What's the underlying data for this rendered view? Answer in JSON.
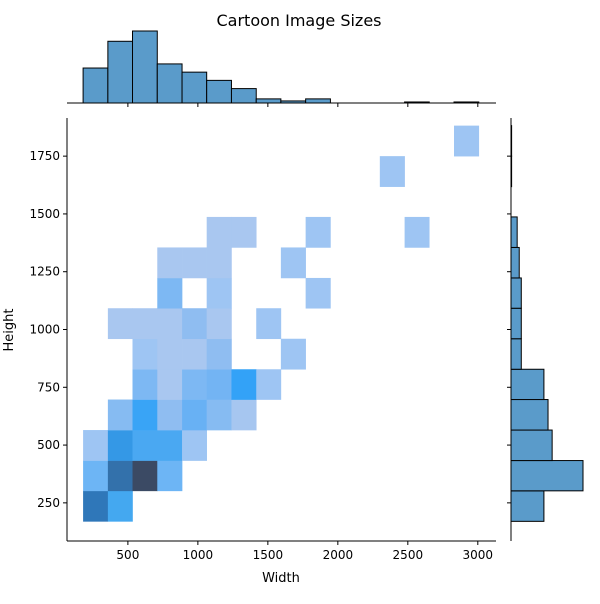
{
  "chart_data": {
    "type": "heatmap",
    "title": "Cartoon Image Sizes",
    "xlabel": "Width",
    "ylabel": "Height",
    "xlim": [
      65,
      3130
    ],
    "ylim": [
      85,
      1915
    ],
    "x_ticks": [
      500,
      1000,
      1500,
      2000,
      2500,
      3000
    ],
    "y_ticks": [
      250,
      500,
      750,
      1000,
      1250,
      1500,
      1750
    ],
    "x_bin_edges": [
      180,
      357,
      533,
      710,
      887,
      1063,
      1240,
      1417,
      1593,
      1770,
      1947,
      2123,
      2300,
      2477,
      2653,
      2830,
      3007
    ],
    "y_bin_edges": [
      170,
      302,
      433,
      565,
      697,
      828,
      960,
      1092,
      1223,
      1355,
      1487,
      1618,
      1750,
      1882
    ],
    "cells": [
      {
        "x_bin": 0,
        "y_bin": 0,
        "color": "#2f77b9"
      },
      {
        "x_bin": 1,
        "y_bin": 0,
        "color": "#44a8f0"
      },
      {
        "x_bin": 0,
        "y_bin": 1,
        "color": "#6db5f5"
      },
      {
        "x_bin": 1,
        "y_bin": 1,
        "color": "#3371ab"
      },
      {
        "x_bin": 2,
        "y_bin": 1,
        "color": "#3b4a64"
      },
      {
        "x_bin": 3,
        "y_bin": 1,
        "color": "#6db5f5"
      },
      {
        "x_bin": 0,
        "y_bin": 2,
        "color": "#9ec5f3"
      },
      {
        "x_bin": 1,
        "y_bin": 2,
        "color": "#3498e6"
      },
      {
        "x_bin": 2,
        "y_bin": 2,
        "color": "#4aa8f2"
      },
      {
        "x_bin": 3,
        "y_bin": 2,
        "color": "#4aa8f2"
      },
      {
        "x_bin": 4,
        "y_bin": 2,
        "color": "#9ec5f3"
      },
      {
        "x_bin": 1,
        "y_bin": 3,
        "color": "#86bbf2"
      },
      {
        "x_bin": 2,
        "y_bin": 3,
        "color": "#39a4f6"
      },
      {
        "x_bin": 3,
        "y_bin": 3,
        "color": "#8fbdf1"
      },
      {
        "x_bin": 4,
        "y_bin": 3,
        "color": "#68b1f4"
      },
      {
        "x_bin": 5,
        "y_bin": 3,
        "color": "#86bbf2"
      },
      {
        "x_bin": 6,
        "y_bin": 3,
        "color": "#a6c6f0"
      },
      {
        "x_bin": 2,
        "y_bin": 4,
        "color": "#7db8f3"
      },
      {
        "x_bin": 3,
        "y_bin": 4,
        "color": "#a9c7f0"
      },
      {
        "x_bin": 4,
        "y_bin": 4,
        "color": "#7db8f3"
      },
      {
        "x_bin": 5,
        "y_bin": 4,
        "color": "#73b4f3"
      },
      {
        "x_bin": 6,
        "y_bin": 4,
        "color": "#33a2f7"
      },
      {
        "x_bin": 7,
        "y_bin": 4,
        "color": "#9ec5f3"
      },
      {
        "x_bin": 2,
        "y_bin": 5,
        "color": "#9ec5f3"
      },
      {
        "x_bin": 3,
        "y_bin": 5,
        "color": "#a9c7f0"
      },
      {
        "x_bin": 4,
        "y_bin": 5,
        "color": "#a9c7f0"
      },
      {
        "x_bin": 5,
        "y_bin": 5,
        "color": "#8fbdf1"
      },
      {
        "x_bin": 8,
        "y_bin": 5,
        "color": "#9ec5f3"
      },
      {
        "x_bin": 1,
        "y_bin": 6,
        "color": "#a9c7f0"
      },
      {
        "x_bin": 2,
        "y_bin": 6,
        "color": "#a9c7f0"
      },
      {
        "x_bin": 3,
        "y_bin": 6,
        "color": "#a9c7f0"
      },
      {
        "x_bin": 4,
        "y_bin": 6,
        "color": "#8fbdf1"
      },
      {
        "x_bin": 5,
        "y_bin": 6,
        "color": "#a9c7f0"
      },
      {
        "x_bin": 7,
        "y_bin": 6,
        "color": "#9ec5f3"
      },
      {
        "x_bin": 3,
        "y_bin": 7,
        "color": "#7db8f3"
      },
      {
        "x_bin": 5,
        "y_bin": 7,
        "color": "#9ec5f3"
      },
      {
        "x_bin": 9,
        "y_bin": 7,
        "color": "#9ec5f3"
      },
      {
        "x_bin": 3,
        "y_bin": 8,
        "color": "#a9c7f0"
      },
      {
        "x_bin": 4,
        "y_bin": 8,
        "color": "#a9c7f0"
      },
      {
        "x_bin": 5,
        "y_bin": 8,
        "color": "#a9c7f0"
      },
      {
        "x_bin": 8,
        "y_bin": 8,
        "color": "#9ec5f3"
      },
      {
        "x_bin": 5,
        "y_bin": 9,
        "color": "#a9c7f0"
      },
      {
        "x_bin": 6,
        "y_bin": 9,
        "color": "#a9c7f0"
      },
      {
        "x_bin": 9,
        "y_bin": 9,
        "color": "#9ec5f3"
      },
      {
        "x_bin": 13,
        "y_bin": 9,
        "color": "#9ec5f3"
      },
      {
        "x_bin": 12,
        "y_bin": 11,
        "color": "#9ec5f3"
      },
      {
        "x_bin": 15,
        "y_bin": 12,
        "color": "#9ec5f3"
      }
    ],
    "marginal_x": {
      "bin_edges": [
        180,
        357,
        533,
        710,
        887,
        1063,
        1240,
        1417,
        1593,
        1770,
        1947,
        2123,
        2300,
        2477,
        2653,
        2830,
        3007
      ],
      "counts": [
        17,
        30,
        35,
        19,
        15,
        11,
        7,
        2,
        1,
        2,
        0,
        0,
        0,
        0.5,
        0,
        0.5
      ]
    },
    "marginal_y": {
      "bin_edges": [
        170,
        302,
        433,
        565,
        697,
        828,
        960,
        1092,
        1223,
        1355,
        1487,
        1618,
        1750,
        1882
      ],
      "counts": [
        16,
        35,
        20,
        18,
        16,
        5,
        5,
        5,
        4,
        3,
        0,
        0.3,
        0.3
      ]
    },
    "colors": {
      "hist_fill": "#5a9bca",
      "hist_edge": "#000000",
      "axis": "#000000"
    }
  }
}
